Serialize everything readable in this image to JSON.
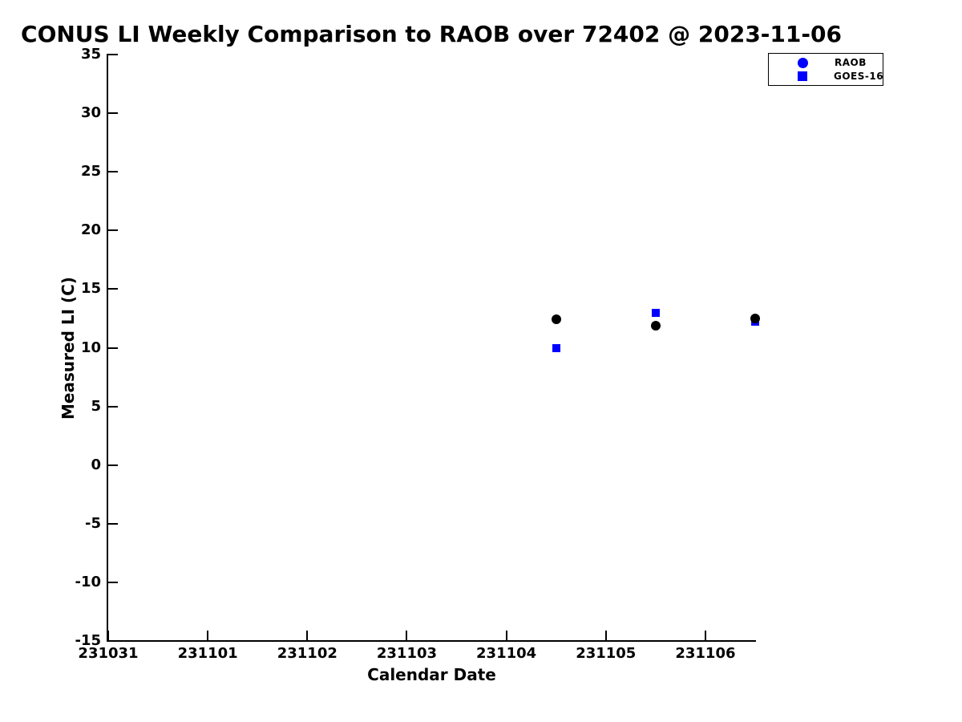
{
  "chart_data": {
    "type": "scatter",
    "title": "CONUS LI Weekly Comparison to RAOB over 72402 @ 2023-11-06",
    "xlabel": "Calendar Date",
    "ylabel": "Measured LI (C)",
    "x_tick_labels": [
      "231031",
      "231101",
      "231102",
      "231103",
      "231104",
      "231105",
      "231106"
    ],
    "x_tick_offsets": [
      0,
      1,
      2,
      3,
      4,
      5,
      6
    ],
    "xlim_day_offsets": [
      0,
      6.5
    ],
    "y_ticks": [
      35,
      30,
      25,
      20,
      15,
      10,
      5,
      0,
      -5,
      -10,
      -15
    ],
    "ylim": [
      -15,
      35
    ],
    "grid": false,
    "legend": {
      "position": "top-right",
      "entries": [
        {
          "label": "RAOB",
          "marker": "circle",
          "color": "#0000ff"
        },
        {
          "label": "GOES-16",
          "marker": "square",
          "color": "#0000ff"
        }
      ]
    },
    "series": [
      {
        "name": "RAOB",
        "marker": "circle",
        "color": "#000000",
        "points": [
          {
            "x": "231104.5",
            "x_day_offset": 4.5,
            "y": 12.4
          },
          {
            "x": "231105.5",
            "x_day_offset": 5.5,
            "y": 11.9
          },
          {
            "x": "231106.5",
            "x_day_offset": 6.5,
            "y": 12.5
          }
        ]
      },
      {
        "name": "GOES-16",
        "marker": "square",
        "color": "#0000ff",
        "points": [
          {
            "x": "231104.5",
            "x_day_offset": 4.5,
            "y": 10.0
          },
          {
            "x": "231105.5",
            "x_day_offset": 5.5,
            "y": 13.0
          },
          {
            "x": "231106.5",
            "x_day_offset": 6.5,
            "y": 12.2
          }
        ]
      }
    ]
  },
  "colors": {
    "background": "#ffffff",
    "axis": "#000000",
    "raob_plot_marker": "#000000",
    "goes16_plot_marker": "#0000ff",
    "legend_marker": "#0000ff"
  }
}
